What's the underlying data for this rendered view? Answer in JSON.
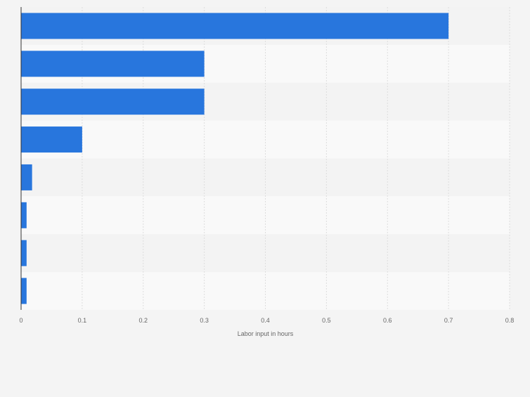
{
  "chart_data": {
    "type": "bar",
    "orientation": "horizontal",
    "categories": [
      "",
      "",
      "",
      "",
      "",
      "",
      "",
      ""
    ],
    "values": [
      0.7,
      0.3,
      0.3,
      0.1,
      0.018,
      0.009,
      0.009,
      0.009
    ],
    "xlabel": "Labor input in hours",
    "ylabel": "",
    "xlim": [
      0,
      0.8
    ],
    "xticks": [
      0,
      0.1,
      0.2,
      0.3,
      0.4,
      0.5,
      0.6,
      0.7,
      0.8
    ],
    "xtick_labels": [
      "0",
      "0.1",
      "0.2",
      "0.3",
      "0.4",
      "0.5",
      "0.6",
      "0.7",
      "0.8"
    ],
    "grid": true,
    "legend": "none",
    "colors": {
      "bar": "#2876dd",
      "background": "#f4f4f4",
      "band_light": "#f9f9f9",
      "band_dark": "#f3f3f3",
      "gridline": "#dddddd",
      "axis": "#333333",
      "tick_text": "#666666"
    }
  }
}
